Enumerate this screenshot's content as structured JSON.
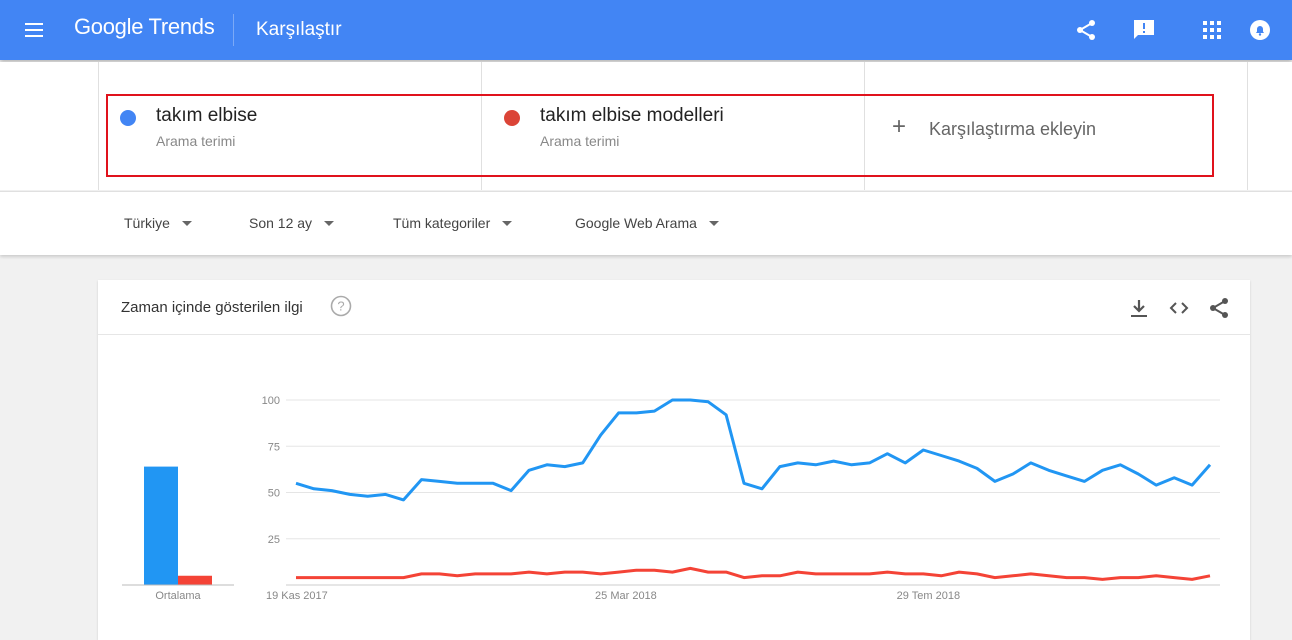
{
  "header": {
    "brand": "Google Trends",
    "page_title": "Karşılaştır",
    "icons": [
      "menu-icon",
      "share-icon",
      "feedback-icon",
      "apps-icon",
      "notifications-icon"
    ]
  },
  "compare": {
    "terms": [
      {
        "name": "takım elbise",
        "type": "Arama terimi",
        "color": "#4285f4"
      },
      {
        "name": "takım elbise modelleri",
        "type": "Arama terimi",
        "color": "#db4437"
      }
    ],
    "add_label": "Karşılaştırma ekleyin"
  },
  "filters": {
    "region": "Türkiye",
    "period": "Son 12 ay",
    "category": "Tüm kategoriler",
    "search_type": "Google Web Arama"
  },
  "card": {
    "title": "Zaman içinde gösterilen ilgi",
    "icons": [
      "help-icon",
      "download-icon",
      "embed-icon",
      "share-icon"
    ]
  },
  "chart_data": {
    "type": "line",
    "y_ticks": [
      "100",
      "75",
      "50",
      "25"
    ],
    "ylim": [
      0,
      100
    ],
    "x_labels": [
      "19 Kas 2017",
      "25 Mar 2018",
      "29 Tem 2018"
    ],
    "average_label": "Ortalama",
    "averages": [
      64,
      5
    ],
    "grid": true,
    "series": [
      {
        "name": "takım elbise",
        "color": "#2196f3",
        "values": [
          55,
          52,
          51,
          49,
          48,
          49,
          46,
          57,
          56,
          55,
          55,
          55,
          51,
          62,
          65,
          64,
          66,
          81,
          93,
          93,
          94,
          100,
          100,
          99,
          92,
          55,
          52,
          64,
          66,
          65,
          67,
          65,
          66,
          71,
          66,
          73,
          70,
          67,
          63,
          56,
          60,
          66,
          62,
          59,
          56,
          62,
          65,
          60,
          54,
          58,
          54,
          65
        ]
      },
      {
        "name": "takım elbise modelleri",
        "color": "#f44336",
        "values": [
          4,
          4,
          4,
          4,
          4,
          4,
          4,
          6,
          6,
          5,
          6,
          6,
          6,
          7,
          6,
          7,
          7,
          6,
          7,
          8,
          8,
          7,
          9,
          7,
          7,
          4,
          5,
          5,
          7,
          6,
          6,
          6,
          6,
          7,
          6,
          6,
          5,
          7,
          6,
          4,
          5,
          6,
          5,
          4,
          4,
          3,
          4,
          4,
          5,
          4,
          3,
          5
        ]
      }
    ]
  }
}
